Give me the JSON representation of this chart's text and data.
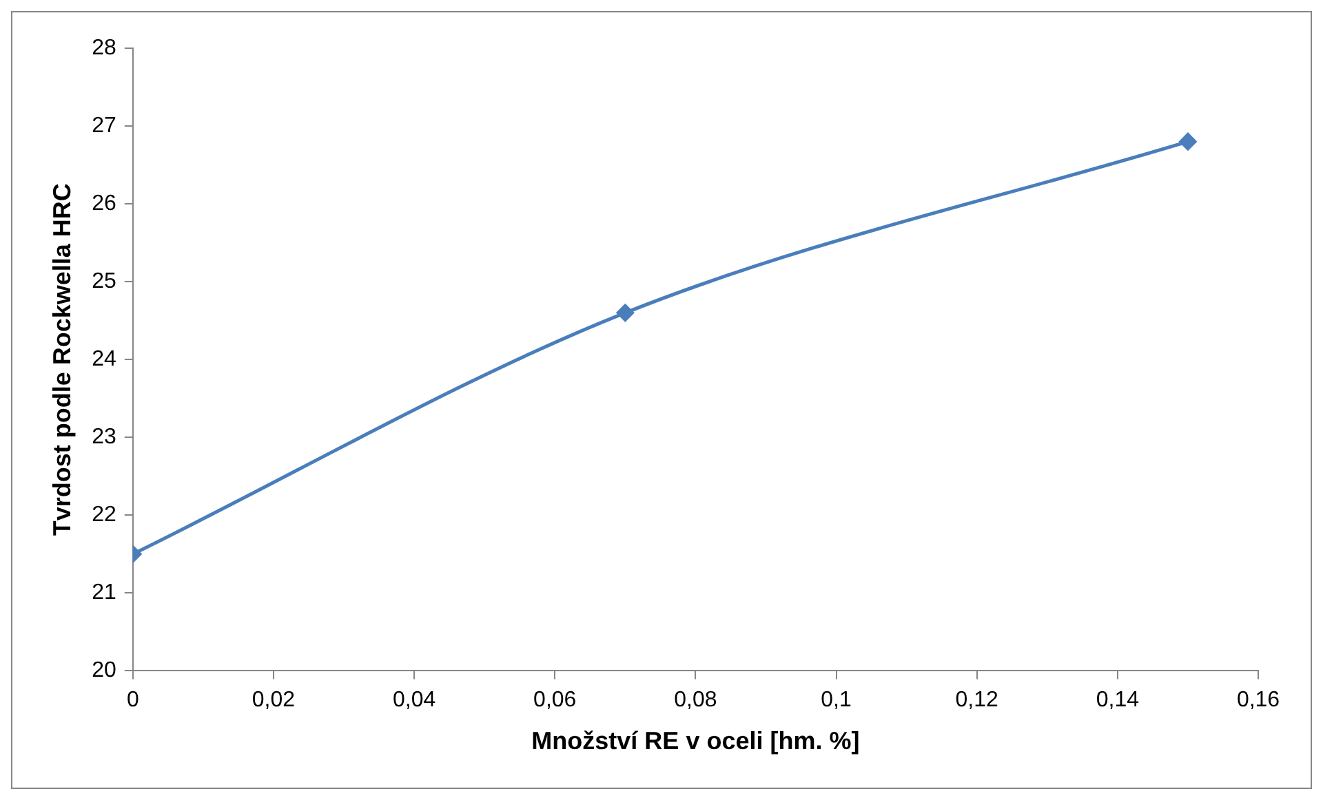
{
  "chart_data": {
    "type": "line",
    "xlabel": "Množství RE v oceli [hm. %]",
    "ylabel": "Tvrdost podle Rockwella HRC",
    "x": [
      0,
      0.07,
      0.15
    ],
    "series": [
      {
        "color": "#4a7ebb",
        "values": [
          21.5,
          24.6,
          26.8
        ]
      }
    ],
    "xlim": [
      0,
      0.16
    ],
    "xticks": [
      0,
      {
        "value": 0.02,
        "label": "0,02"
      },
      {
        "value": 0.04,
        "label": "0,04"
      },
      {
        "value": 0.06,
        "label": "0,06"
      },
      {
        "value": 0.08,
        "label": "0,08"
      },
      {
        "value": 0.1,
        "label": "0,1"
      },
      {
        "value": 0.12,
        "label": "0,12"
      },
      {
        "value": 0.14,
        "label": "0,14"
      },
      {
        "value": 0.16,
        "label": "0,16"
      }
    ],
    "ylim": [
      20,
      28
    ],
    "yticks": [
      20,
      21,
      22,
      23,
      24,
      25,
      26,
      27,
      28
    ],
    "grid": false,
    "marker": "diamond",
    "line_style": "solid"
  }
}
